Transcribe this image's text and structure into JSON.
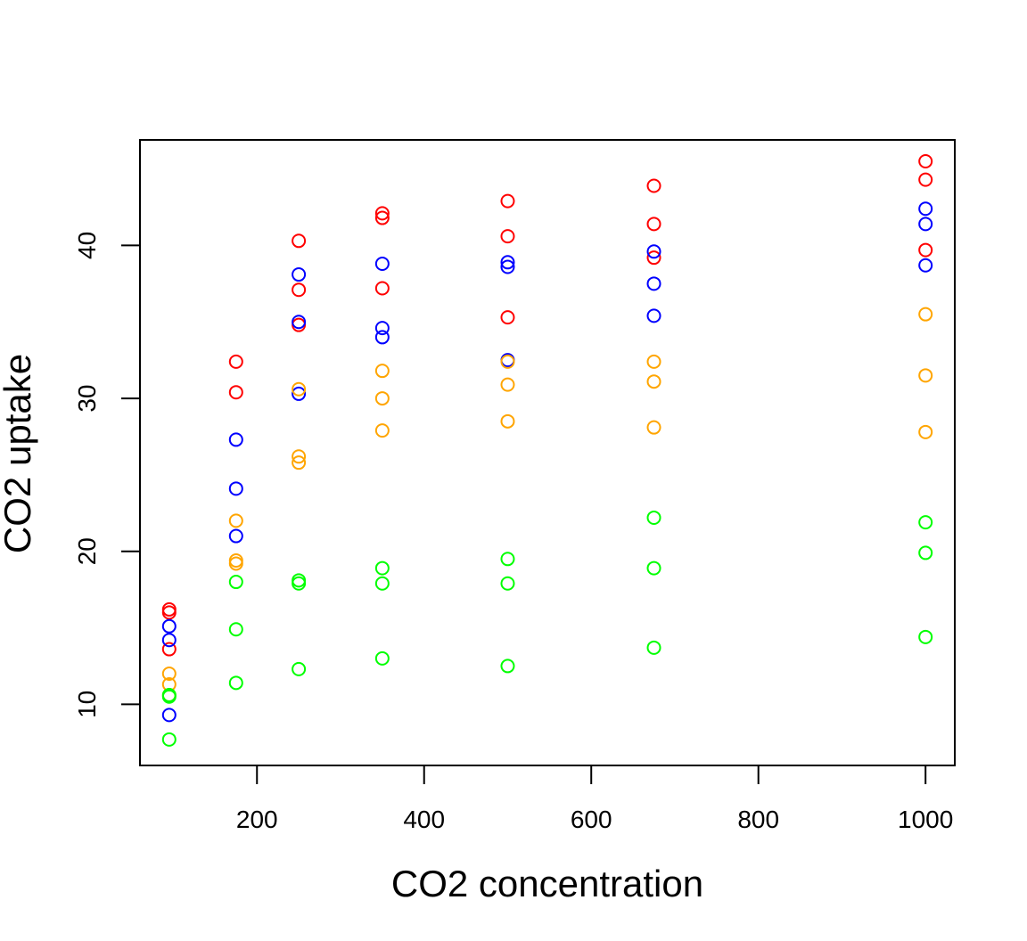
{
  "chart_data": {
    "type": "scatter",
    "title": "",
    "xlabel": "CO2 concentration",
    "ylabel": "CO2 uptake",
    "xlim": [
      60,
      1035
    ],
    "ylim": [
      6.0,
      46.9
    ],
    "xticks": [
      200,
      400,
      600,
      800,
      1000
    ],
    "yticks": [
      10,
      20,
      30,
      40
    ],
    "grid": false,
    "legend": "none",
    "series": [
      {
        "color": "#ff0000",
        "points": [
          [
            95,
            16.2
          ],
          [
            95,
            16.0
          ],
          [
            95,
            13.6
          ],
          [
            175,
            32.4
          ],
          [
            175,
            30.4
          ],
          [
            250,
            40.3
          ],
          [
            250,
            37.1
          ],
          [
            250,
            34.8
          ],
          [
            350,
            42.1
          ],
          [
            350,
            41.8
          ],
          [
            350,
            37.2
          ],
          [
            500,
            42.9
          ],
          [
            500,
            40.6
          ],
          [
            500,
            35.3
          ],
          [
            675,
            43.9
          ],
          [
            675,
            41.4
          ],
          [
            675,
            39.2
          ],
          [
            1000,
            45.5
          ],
          [
            1000,
            44.3
          ],
          [
            1000,
            39.7
          ]
        ]
      },
      {
        "color": "#0000ff",
        "points": [
          [
            95,
            15.1
          ],
          [
            95,
            14.2
          ],
          [
            95,
            9.3
          ],
          [
            175,
            27.3
          ],
          [
            175,
            24.1
          ],
          [
            175,
            21.0
          ],
          [
            250,
            38.1
          ],
          [
            250,
            35.0
          ],
          [
            250,
            30.3
          ],
          [
            350,
            38.8
          ],
          [
            350,
            34.6
          ],
          [
            350,
            34.0
          ],
          [
            500,
            38.9
          ],
          [
            500,
            38.6
          ],
          [
            500,
            32.5
          ],
          [
            675,
            39.6
          ],
          [
            675,
            37.5
          ],
          [
            675,
            35.4
          ],
          [
            1000,
            42.4
          ],
          [
            1000,
            41.4
          ],
          [
            1000,
            38.7
          ]
        ]
      },
      {
        "color": "#ffa500",
        "points": [
          [
            95,
            12.0
          ],
          [
            95,
            11.3
          ],
          [
            95,
            10.6
          ],
          [
            175,
            22.0
          ],
          [
            175,
            19.4
          ],
          [
            175,
            19.2
          ],
          [
            250,
            30.6
          ],
          [
            250,
            26.2
          ],
          [
            250,
            25.8
          ],
          [
            350,
            31.8
          ],
          [
            350,
            30.0
          ],
          [
            350,
            27.9
          ],
          [
            500,
            32.4
          ],
          [
            500,
            30.9
          ],
          [
            500,
            28.5
          ],
          [
            675,
            32.4
          ],
          [
            675,
            31.1
          ],
          [
            675,
            28.1
          ],
          [
            1000,
            35.5
          ],
          [
            1000,
            31.5
          ],
          [
            1000,
            27.8
          ]
        ]
      },
      {
        "color": "#00ff00",
        "points": [
          [
            95,
            10.6
          ],
          [
            95,
            10.5
          ],
          [
            95,
            7.7
          ],
          [
            175,
            18.0
          ],
          [
            175,
            14.9
          ],
          [
            175,
            11.4
          ],
          [
            250,
            18.1
          ],
          [
            250,
            17.9
          ],
          [
            250,
            12.3
          ],
          [
            350,
            18.9
          ],
          [
            350,
            17.9
          ],
          [
            350,
            13.0
          ],
          [
            500,
            19.5
          ],
          [
            500,
            17.9
          ],
          [
            500,
            12.5
          ],
          [
            675,
            22.2
          ],
          [
            675,
            18.9
          ],
          [
            675,
            13.7
          ],
          [
            1000,
            21.9
          ],
          [
            1000,
            19.9
          ],
          [
            1000,
            14.4
          ]
        ]
      }
    ]
  }
}
